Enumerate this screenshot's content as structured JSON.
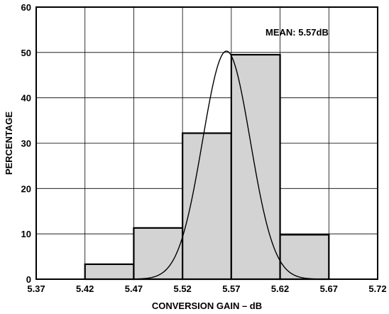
{
  "chart_data": {
    "type": "bar",
    "title": "",
    "xlabel": "CONVERSION GAIN – dB",
    "ylabel": "PERCENTAGE",
    "xlim": [
      5.37,
      5.72
    ],
    "ylim": [
      0,
      60
    ],
    "x_ticks": [
      "5.37",
      "5.42",
      "5.47",
      "5.52",
      "5.57",
      "5.62",
      "5.67",
      "5.72"
    ],
    "y_ticks": [
      "0",
      "10",
      "20",
      "30",
      "40",
      "50",
      "60"
    ],
    "grid": true,
    "bins": [
      {
        "start": 5.42,
        "end": 5.47,
        "value": 3.3
      },
      {
        "start": 5.47,
        "end": 5.52,
        "value": 11.3
      },
      {
        "start": 5.52,
        "end": 5.57,
        "value": 32.2
      },
      {
        "start": 5.57,
        "end": 5.62,
        "value": 49.5
      },
      {
        "start": 5.62,
        "end": 5.67,
        "value": 9.8
      }
    ],
    "normal_curve": {
      "mean": 5.565,
      "sigma": 0.0245,
      "peak": 50.3
    },
    "annotation": "MEAN: 5.57dB",
    "bar_color": "#d3d3d3",
    "line_color": "#000000"
  }
}
